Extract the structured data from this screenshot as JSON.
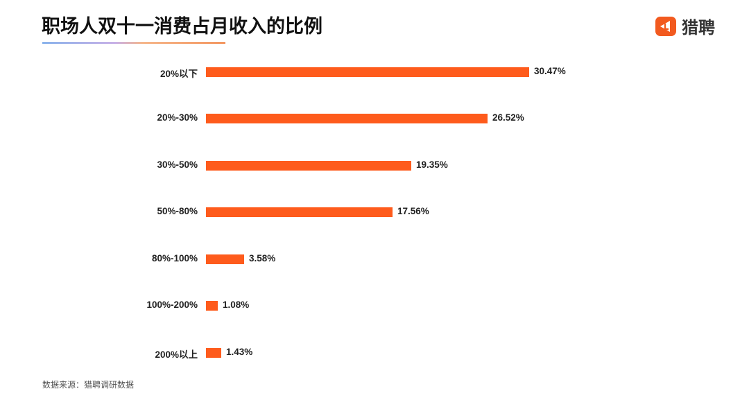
{
  "header": {
    "title": "职场人双十一消费占月收入的比例",
    "logo_text": "猎聘",
    "logo_icon": "liepin-logo-icon"
  },
  "colors": {
    "bar": "#fe5b1c",
    "logo": "#f25a1f",
    "underline_start": "#6a9fe6",
    "underline_end": "#f07a35"
  },
  "footer": {
    "source": "数据来源：猎聘调研数据"
  },
  "chart_data": {
    "type": "bar",
    "orientation": "horizontal",
    "title": "职场人双十一消费占月收入的比例",
    "xlabel": "",
    "ylabel": "",
    "categories": [
      "20%以下",
      "20%-30%",
      "30%-50%",
      "50%-80%",
      "80%-100%",
      "100%-200%",
      "200%以上"
    ],
    "values": [
      30.47,
      26.52,
      19.35,
      17.56,
      3.58,
      1.08,
      1.43
    ],
    "value_labels": [
      "30.47%",
      "26.52%",
      "19.35%",
      "17.56%",
      "3.58%",
      "1.08%",
      "1.43%"
    ],
    "unit": "%",
    "grid": false,
    "legend": "none",
    "source": "数据来源：猎聘调研数据"
  }
}
